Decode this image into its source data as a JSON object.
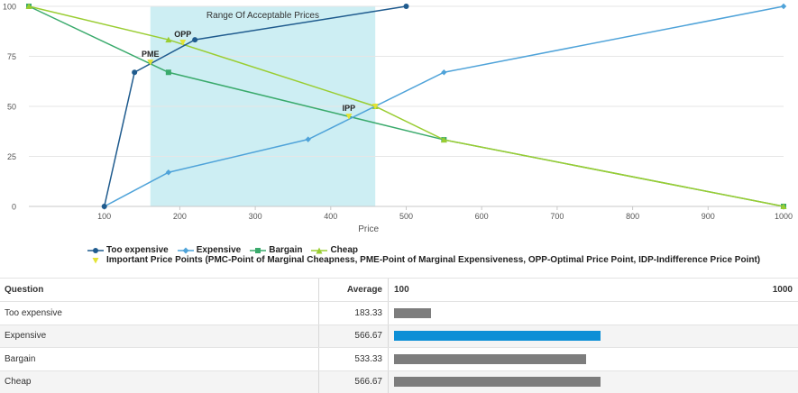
{
  "chart_data": {
    "type": "line",
    "xlabel": "Price",
    "xlim": [
      0,
      1000
    ],
    "ylim": [
      0,
      100
    ],
    "x_ticks": [
      "100",
      "200",
      "300",
      "400",
      "500",
      "600",
      "700",
      "800",
      "900",
      "1000"
    ],
    "y_ticks": [
      "0",
      "25",
      "50",
      "75",
      "100"
    ],
    "band": {
      "label": "Range Of Acceptable Prices",
      "x_start": 161,
      "x_end": 459
    },
    "series": [
      {
        "name": "Too expensive",
        "color": "#1f5b8e",
        "marker": "circle",
        "points": [
          [
            100,
            0
          ],
          [
            140,
            67
          ],
          [
            220,
            83.3
          ],
          [
            500,
            100
          ]
        ]
      },
      {
        "name": "Expensive",
        "color": "#4fa3d9",
        "marker": "diamond",
        "points": [
          [
            100,
            0
          ],
          [
            185,
            17
          ],
          [
            370,
            33.5
          ],
          [
            550,
            67
          ],
          [
            1000,
            100
          ]
        ]
      },
      {
        "name": "Bargain",
        "color": "#3aaa6c",
        "marker": "square",
        "points": [
          [
            0,
            100
          ],
          [
            185,
            67
          ],
          [
            550,
            33.3
          ],
          [
            1000,
            0
          ]
        ]
      },
      {
        "name": "Cheap",
        "color": "#9acd32",
        "marker": "triangle",
        "points": [
          [
            0,
            100
          ],
          [
            185,
            83.3
          ],
          [
            459,
            50
          ],
          [
            550,
            33.3
          ],
          [
            1000,
            0
          ]
        ]
      }
    ],
    "price_points": {
      "legend_label": "Important Price Points (PMC-Point of Marginal Cheapness, PME-Point of Marginal Expensiveness, OPP-Optimal Price Point, IDP-Indifference Price Point)",
      "color": "#e3e336",
      "points": [
        {
          "label": "PME",
          "x": 161,
          "y": 72
        },
        {
          "label": "OPP",
          "x": 204,
          "y": 82
        },
        {
          "label": "IPP",
          "x": 424,
          "y": 45
        },
        {
          "label": "",
          "x": 459,
          "y": 50
        }
      ]
    }
  },
  "table": {
    "headers": {
      "question": "Question",
      "average": "Average",
      "scale_min": "100",
      "scale_max": "1000"
    },
    "scale": [
      100,
      1000
    ],
    "rows": [
      {
        "question": "Too expensive",
        "average": "183.33",
        "value": 183.33,
        "highlight": false
      },
      {
        "question": "Expensive",
        "average": "566.67",
        "value": 566.67,
        "highlight": true
      },
      {
        "question": "Bargain",
        "average": "533.33",
        "value": 533.33,
        "highlight": false
      },
      {
        "question": "Cheap",
        "average": "566.67",
        "value": 566.67,
        "highlight": false
      }
    ],
    "bar_colors": {
      "default": "#7d7d7d",
      "highlight": "#0d8fd6"
    }
  }
}
